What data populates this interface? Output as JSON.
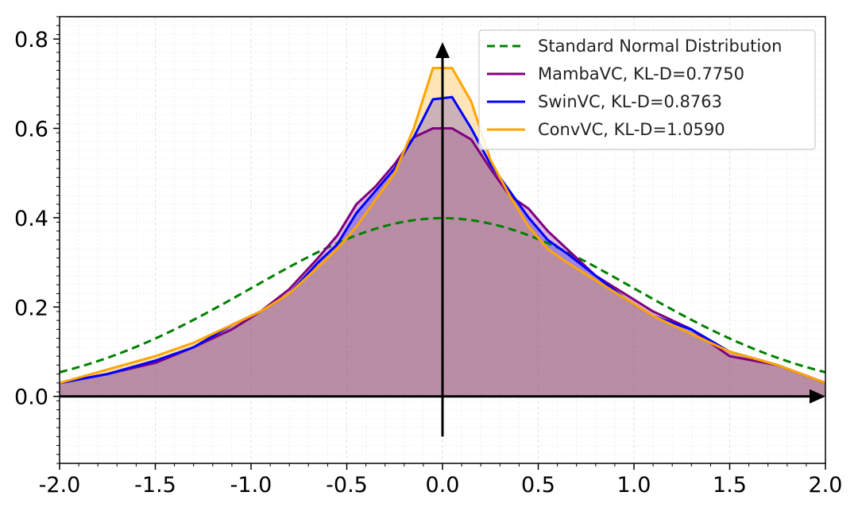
{
  "chart_data": {
    "type": "line",
    "title": "",
    "xlabel": "",
    "ylabel": "",
    "xlim": [
      -2.0,
      2.0
    ],
    "ylim": [
      -0.15,
      0.85
    ],
    "xticks": [
      -2.0,
      -1.5,
      -1.0,
      -0.5,
      0.0,
      0.5,
      1.0,
      1.5,
      2.0
    ],
    "xtick_labels": [
      "-2.0",
      "-1.5",
      "-1.0",
      "-0.5",
      "0.0",
      "0.5",
      "1.0",
      "1.5",
      "2.0"
    ],
    "yticks": [
      0.0,
      0.2,
      0.4,
      0.6,
      0.8
    ],
    "ytick_labels": [
      "0.0",
      "0.2",
      "0.4",
      "0.6",
      "0.8"
    ],
    "grid": true,
    "legend_position": "top-right",
    "series": [
      {
        "name": "Standard Normal Distribution",
        "style": "dashed",
        "color": "#008000",
        "filled": false,
        "function": "standard-normal-pdf"
      },
      {
        "name": "MambaVC, KL-D=0.7750",
        "style": "solid",
        "color": "#800080",
        "filled": true,
        "x": [
          -2.0,
          -1.75,
          -1.5,
          -1.3,
          -1.1,
          -0.95,
          -0.8,
          -0.65,
          -0.55,
          -0.45,
          -0.35,
          -0.25,
          -0.15,
          -0.05,
          0.05,
          0.15,
          0.25,
          0.35,
          0.45,
          0.55,
          0.65,
          0.8,
          0.95,
          1.1,
          1.3,
          1.5,
          1.75,
          2.0
        ],
        "values": [
          0.03,
          0.05,
          0.075,
          0.11,
          0.15,
          0.19,
          0.24,
          0.31,
          0.36,
          0.43,
          0.47,
          0.52,
          0.58,
          0.6,
          0.6,
          0.575,
          0.51,
          0.45,
          0.42,
          0.37,
          0.33,
          0.27,
          0.23,
          0.19,
          0.15,
          0.09,
          0.07,
          0.03
        ]
      },
      {
        "name": "SwinVC, KL-D=0.8763",
        "style": "solid",
        "color": "#0000ff",
        "filled": true,
        "x": [
          -2.0,
          -1.75,
          -1.5,
          -1.3,
          -1.1,
          -0.95,
          -0.8,
          -0.65,
          -0.55,
          -0.45,
          -0.35,
          -0.25,
          -0.15,
          -0.05,
          0.05,
          0.15,
          0.25,
          0.35,
          0.45,
          0.55,
          0.65,
          0.8,
          0.95,
          1.1,
          1.3,
          1.5,
          1.75,
          2.0
        ],
        "values": [
          0.03,
          0.05,
          0.08,
          0.11,
          0.16,
          0.19,
          0.23,
          0.3,
          0.34,
          0.41,
          0.46,
          0.51,
          0.58,
          0.665,
          0.67,
          0.6,
          0.52,
          0.46,
          0.4,
          0.35,
          0.32,
          0.27,
          0.22,
          0.18,
          0.15,
          0.1,
          0.07,
          0.03
        ]
      },
      {
        "name": "ConvVC, KL-D=1.0590",
        "style": "solid",
        "color": "#ffa500",
        "filled": true,
        "x": [
          -2.0,
          -1.75,
          -1.5,
          -1.3,
          -1.1,
          -0.95,
          -0.8,
          -0.65,
          -0.55,
          -0.45,
          -0.35,
          -0.25,
          -0.15,
          -0.05,
          0.05,
          0.15,
          0.25,
          0.35,
          0.45,
          0.55,
          0.65,
          0.8,
          0.95,
          1.1,
          1.3,
          1.5,
          1.75,
          2.0
        ],
        "values": [
          0.03,
          0.06,
          0.09,
          0.12,
          0.16,
          0.19,
          0.23,
          0.29,
          0.33,
          0.38,
          0.44,
          0.5,
          0.6,
          0.735,
          0.735,
          0.66,
          0.53,
          0.45,
          0.38,
          0.33,
          0.3,
          0.26,
          0.22,
          0.18,
          0.14,
          0.1,
          0.07,
          0.03
        ]
      }
    ]
  }
}
